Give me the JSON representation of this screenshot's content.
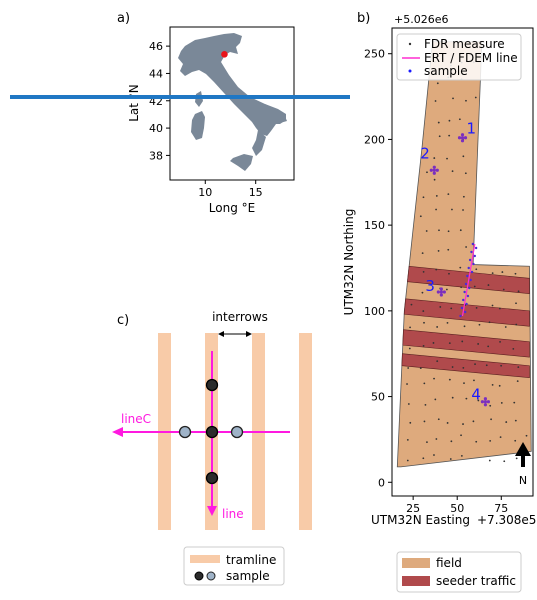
{
  "chart_data": [
    {
      "panel_label": "a)",
      "type": "map",
      "xlabel": "Long °E",
      "ylabel": "Lat °N",
      "xticks": [
        10,
        15
      ],
      "yticks": [
        38,
        40,
        42,
        44,
        46
      ],
      "xlim": [
        6.5,
        18.8
      ],
      "ylim": [
        36.2,
        47.4
      ],
      "marker": {
        "lon": 11.9,
        "lat": 45.4,
        "color": "#e8141b"
      },
      "land_color": "#7a8898",
      "overlay_line_color": "#1f77c4"
    },
    {
      "panel_label": "b)",
      "type": "scatter",
      "xlabel": "UTM32N Easting",
      "ylabel": "UTM32N Northing",
      "x_offset_label": "+7.308e5",
      "y_offset_label": "+5.026e6",
      "xticks": [
        25,
        50,
        75
      ],
      "yticks": [
        0,
        50,
        100,
        150,
        200,
        250
      ],
      "xlim": [
        13,
        93
      ],
      "ylim": [
        -8,
        265
      ],
      "legend": [
        {
          "label": "FDR measure",
          "kind": "dot",
          "color": "#333333"
        },
        {
          "label": "ERT / FDEM line",
          "kind": "line",
          "color": "#ff2fd0"
        },
        {
          "label": "sample",
          "kind": "dot",
          "color": "#1a1aff"
        }
      ],
      "field_color": "#deaa7d",
      "field_polygon": [
        [
          18,
          9
        ],
        [
          92,
          18
        ],
        [
          91,
          126
        ],
        [
          59,
          127
        ],
        [
          64,
          257
        ],
        [
          36,
          257
        ],
        [
          30,
          195
        ],
        [
          25,
          148
        ],
        [
          20,
          100
        ],
        [
          16,
          9
        ]
      ],
      "seeder_traffic_color": "#b04a4c",
      "seeder_bands": [
        {
          "y_left": 126,
          "y_right": 119,
          "thickness": 9
        },
        {
          "y_left": 107,
          "y_right": 100,
          "thickness": 9
        },
        {
          "y_left": 89,
          "y_right": 82,
          "thickness": 9
        },
        {
          "y_left": 75,
          "y_right": 68,
          "thickness": 7
        }
      ],
      "ert_line": {
        "x1": 53,
        "y1": 97,
        "x2": 60,
        "y2": 139,
        "color": "#ff2fd0"
      },
      "sample_points": [
        {
          "id": "1",
          "x": 53,
          "y": 201
        },
        {
          "id": "2",
          "x": 37,
          "y": 182
        },
        {
          "id": "3",
          "x": 41,
          "y": 111
        },
        {
          "id": "4",
          "x": 66,
          "y": 47
        }
      ],
      "sample_color": "#7b2fbf",
      "sample_label_color": "#1a1aff",
      "north_label": "N",
      "field_legend": [
        {
          "label": "field",
          "color": "#deaa7d"
        },
        {
          "label": "seeder traffic",
          "color": "#b04a4c"
        }
      ]
    },
    {
      "panel_label": "c)",
      "type": "diagram",
      "interrows_label": "interrows",
      "linec_label": "lineC",
      "line_label": "line",
      "tramline_color": "#f8cba8",
      "line_color": "#ff19e0",
      "legend": [
        {
          "label": "tramline",
          "kind": "band"
        },
        {
          "label": "sample",
          "kind": "dots"
        }
      ]
    }
  ]
}
